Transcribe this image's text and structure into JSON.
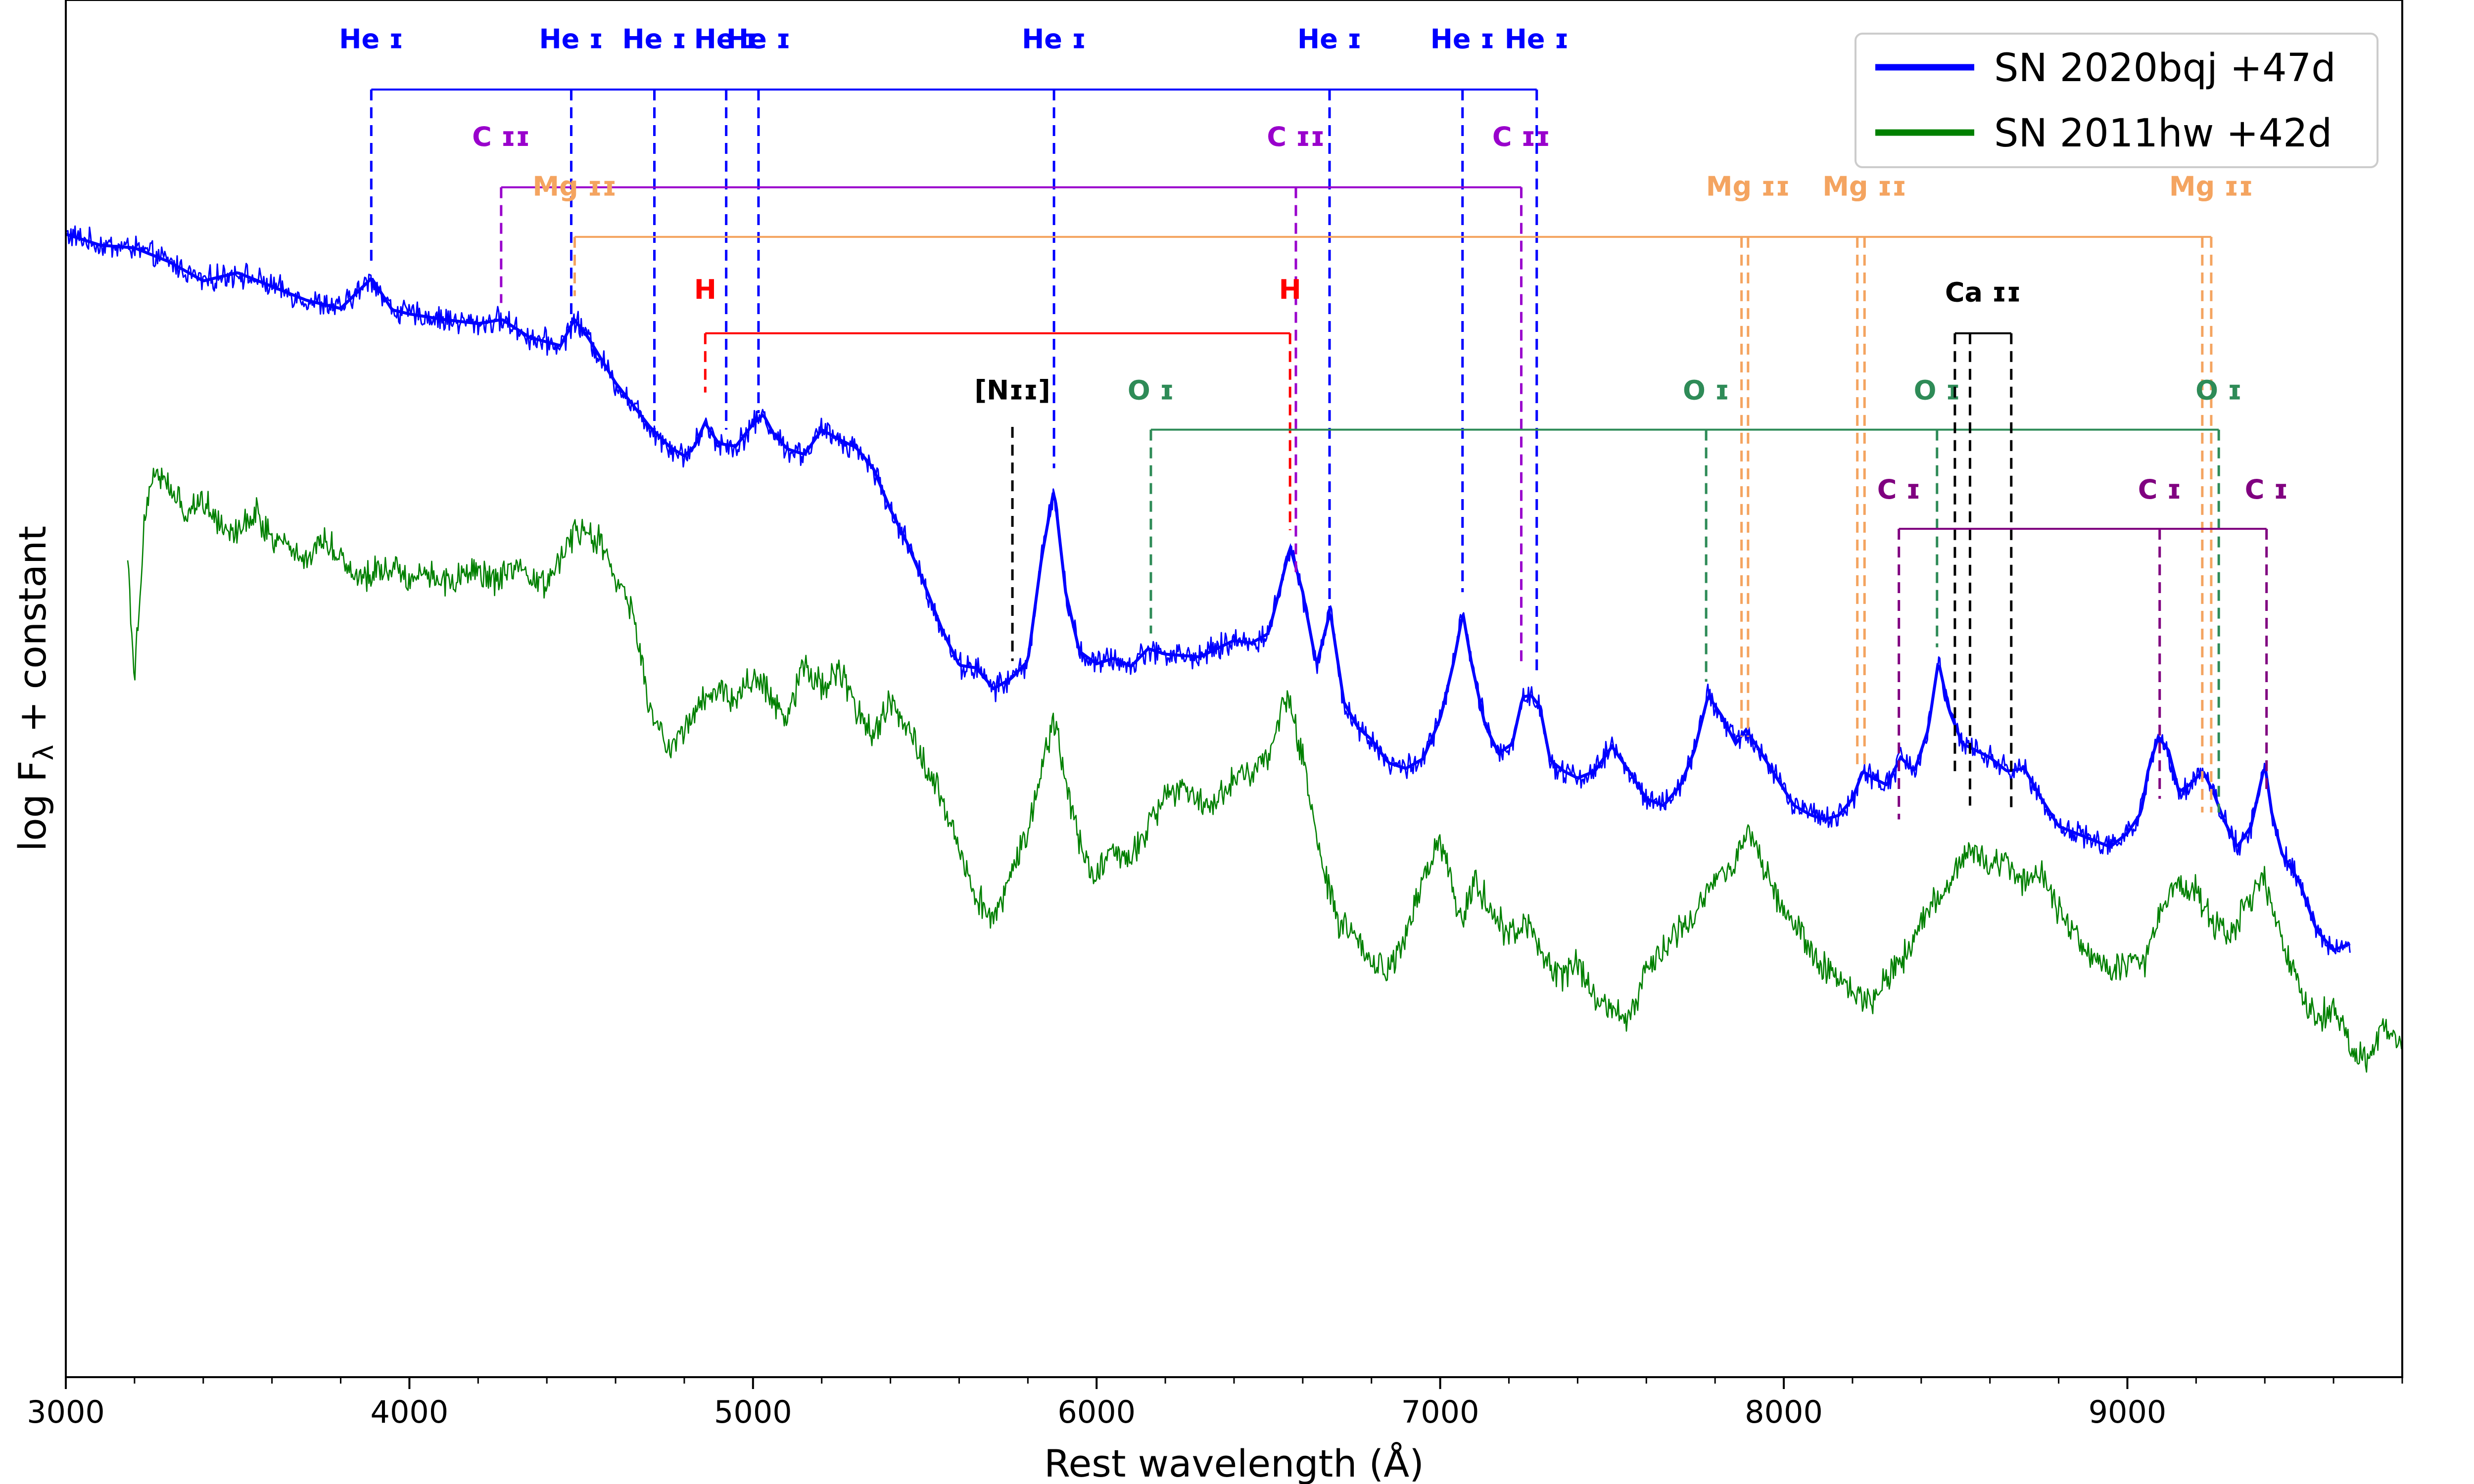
{
  "chart_data": {
    "type": "line",
    "xlabel": "Rest wavelength (Å)",
    "ylabel": "log F",
    "ylabel_sub": "λ",
    "ylabel_suffix": " + constant",
    "xlim": [
      3000,
      9800
    ],
    "ylim": [
      0,
      100
    ],
    "xticks": [
      3000,
      4000,
      5000,
      6000,
      7000,
      8000,
      9000
    ],
    "minor_step": 200,
    "grid": false,
    "legend_position": "top-right",
    "series": [
      {
        "name": "SN 2020bqj +47d",
        "color": "#0000ff",
        "noise": 0.9,
        "x": [
          3000,
          3100,
          3200,
          3300,
          3400,
          3500,
          3600,
          3700,
          3800,
          3890,
          3950,
          4000,
          4100,
          4200,
          4270,
          4350,
          4440,
          4480,
          4520,
          4600,
          4700,
          4760,
          4800,
          4830,
          4860,
          4900,
          4950,
          5000,
          5030,
          5060,
          5100,
          5150,
          5200,
          5250,
          5300,
          5350,
          5400,
          5450,
          5500,
          5550,
          5600,
          5650,
          5700,
          5750,
          5800,
          5840,
          5876,
          5910,
          5950,
          6000,
          6050,
          6100,
          6150,
          6200,
          6300,
          6400,
          6450,
          6500,
          6530,
          6563,
          6600,
          6640,
          6680,
          6720,
          6760,
          6800,
          6850,
          6900,
          6950,
          7000,
          7040,
          7066,
          7090,
          7130,
          7170,
          7210,
          7240,
          7265,
          7290,
          7320,
          7360,
          7400,
          7450,
          7500,
          7550,
          7600,
          7650,
          7700,
          7740,
          7780,
          7820,
          7860,
          7890,
          7930,
          7980,
          8030,
          8080,
          8120,
          8160,
          8200,
          8230,
          8260,
          8300,
          8340,
          8380,
          8420,
          8450,
          8480,
          8520,
          8560,
          8600,
          8650,
          8700,
          8750,
          8800,
          8850,
          8900,
          8950,
          9000,
          9040,
          9060,
          9090,
          9120,
          9150,
          9180,
          9220,
          9250,
          9280,
          9320,
          9360,
          9400,
          9420,
          9450,
          9500,
          9550,
          9600,
          9650
        ],
        "y": [
          83.0,
          82.2,
          82.0,
          81.0,
          79.6,
          80.2,
          79.2,
          78.2,
          77.6,
          79.8,
          77.5,
          77.2,
          76.8,
          76.5,
          76.8,
          75.5,
          74.9,
          76.8,
          75.5,
          72.2,
          69.0,
          67.5,
          66.9,
          67.6,
          69.3,
          67.8,
          67.6,
          69.2,
          69.9,
          68.5,
          67.4,
          67.0,
          68.8,
          68.1,
          67.5,
          66.0,
          63.0,
          60.5,
          57.5,
          54.3,
          51.7,
          51.5,
          50.0,
          50.7,
          52.0,
          59.5,
          64.5,
          57.0,
          52.7,
          51.8,
          52.2,
          51.6,
          52.9,
          52.5,
          52.3,
          53.5,
          53.3,
          54.0,
          56.9,
          60.3,
          57.0,
          51.7,
          55.6,
          49.0,
          47.2,
          46.3,
          44.6,
          44.2,
          44.9,
          47.8,
          52.0,
          55.5,
          52.0,
          47.4,
          45.3,
          46.0,
          49.4,
          49.5,
          48.7,
          44.8,
          44.0,
          43.5,
          44.0,
          45.8,
          44.0,
          42.0,
          41.5,
          43.0,
          45.5,
          49.5,
          48.0,
          46.0,
          47.0,
          45.5,
          43.5,
          41.5,
          40.8,
          40.5,
          40.8,
          42.0,
          44.0,
          43.5,
          43.0,
          45.0,
          44.0,
          47.0,
          52.0,
          48.5,
          46.0,
          45.5,
          45.0,
          44.0,
          44.2,
          42.0,
          40.0,
          39.5,
          39.0,
          38.5,
          39.5,
          41.0,
          44.0,
          46.5,
          45.5,
          42.5,
          43.0,
          44.0,
          42.5,
          40.5,
          38.5,
          40.0,
          44.5,
          41.0,
          38.0,
          36.0,
          32.5,
          31.0,
          31.5
        ]
      },
      {
        "name": "SN 2011hw +42d",
        "color": "#008000",
        "noise": 1.1,
        "x": [
          3180,
          3200,
          3230,
          3260,
          3300,
          3350,
          3400,
          3450,
          3500,
          3550,
          3600,
          3650,
          3700,
          3750,
          3800,
          3850,
          3900,
          3950,
          4000,
          4050,
          4100,
          4150,
          4200,
          4250,
          4300,
          4350,
          4400,
          4450,
          4500,
          4550,
          4600,
          4650,
          4700,
          4750,
          4800,
          4850,
          4900,
          4950,
          5000,
          5050,
          5100,
          5150,
          5200,
          5250,
          5300,
          5350,
          5400,
          5450,
          5500,
          5550,
          5600,
          5650,
          5700,
          5750,
          5800,
          5840,
          5876,
          5920,
          5960,
          6000,
          6050,
          6100,
          6150,
          6200,
          6250,
          6300,
          6350,
          6400,
          6450,
          6500,
          6530,
          6563,
          6600,
          6650,
          6700,
          6750,
          6800,
          6850,
          6900,
          6950,
          7000,
          7050,
          7066,
          7100,
          7150,
          7200,
          7250,
          7300,
          7350,
          7400,
          7450,
          7500,
          7550,
          7600,
          7650,
          7700,
          7750,
          7800,
          7850,
          7890,
          7930,
          7980,
          8050,
          8100,
          8150,
          8200,
          8250,
          8300,
          8350,
          8400,
          8450,
          8500,
          8550,
          8600,
          8650,
          8700,
          8750,
          8800,
          8850,
          8900,
          8950,
          9000,
          9050,
          9100,
          9150,
          9200,
          9250,
          9300,
          9350,
          9400,
          9450,
          9500,
          9550,
          9600,
          9650,
          9700,
          9750,
          9800
        ],
        "y": [
          60.0,
          50.5,
          63.0,
          66.0,
          64.5,
          62.8,
          63.8,
          62.0,
          61.5,
          62.8,
          61.0,
          60.5,
          59.2,
          61.0,
          59.6,
          58.0,
          58.5,
          59.0,
          58.0,
          58.5,
          57.8,
          58.0,
          58.5,
          57.8,
          58.5,
          58.0,
          57.5,
          60.2,
          61.5,
          60.8,
          58.0,
          55.5,
          48.5,
          45.5,
          47.0,
          49.2,
          50.0,
          49.0,
          51.0,
          49.5,
          48.0,
          52.0,
          50.0,
          51.5,
          48.5,
          46.5,
          49.0,
          47.5,
          44.5,
          42.0,
          38.5,
          35.0,
          33.0,
          36.5,
          40.0,
          44.0,
          47.8,
          42.0,
          38.0,
          36.5,
          37.8,
          38.0,
          40.0,
          42.0,
          43.0,
          42.0,
          41.8,
          43.5,
          44.0,
          45.0,
          48.0,
          49.3,
          45.0,
          38.0,
          33.0,
          32.0,
          30.0,
          29.5,
          32.0,
          36.0,
          39.0,
          34.0,
          33.0,
          36.0,
          34.0,
          32.0,
          33.0,
          30.5,
          29.0,
          30.0,
          27.5,
          27.0,
          26.0,
          29.5,
          31.5,
          32.5,
          34.0,
          36.0,
          37.0,
          40.0,
          38.0,
          34.5,
          32.5,
          30.0,
          29.0,
          28.0,
          27.0,
          29.0,
          30.5,
          33.0,
          35.0,
          36.5,
          38.5,
          37.0,
          37.5,
          36.0,
          36.5,
          34.0,
          32.0,
          30.5,
          29.5,
          30.0,
          30.0,
          34.0,
          36.0,
          35.5,
          33.0,
          32.0,
          34.5,
          36.0,
          31.5,
          28.0,
          26.0,
          27.0,
          24.0,
          23.0,
          25.5,
          24.0
        ]
      }
    ],
    "line_groups": [
      {
        "name": "He I",
        "label": "He ɪ",
        "color": "#0000ff",
        "bar_level": 93.5,
        "label_level": 96.5,
        "lines": [
          {
            "x": 3889,
            "line_top": 93.5,
            "line_bottom": 81.0,
            "label": "He ɪ",
            "label_x": 3889
          },
          {
            "x": 4471,
            "line_top": 93.5,
            "line_bottom": 76.5,
            "label": "He ɪ",
            "label_x": 4471
          },
          {
            "x": 4713,
            "line_top": 93.5,
            "line_bottom": 68.5,
            "label": "He ɪ",
            "label_x": 4713
          },
          {
            "x": 4922,
            "line_top": 93.5,
            "line_bottom": 68.8,
            "label": "He ɪ",
            "label_x": 4922
          },
          {
            "x": 5016,
            "line_top": 93.5,
            "line_bottom": 70.0,
            "label": "He ɪ",
            "label_x": 5016
          },
          {
            "x": 5876,
            "line_top": 93.5,
            "line_bottom": 66.0,
            "label": "He ɪ",
            "label_x": 5876
          },
          {
            "x": 6678,
            "line_top": 93.5,
            "line_bottom": 55.5,
            "label": "He ɪ",
            "label_x": 6678
          },
          {
            "x": 7065,
            "line_top": 93.5,
            "line_bottom": 57.0,
            "label": "He ɪ",
            "label_x": 7065
          },
          {
            "x": 7281,
            "line_top": 93.5,
            "line_bottom": 51.0,
            "label": "He ɪ",
            "label_x": 7281
          }
        ]
      },
      {
        "name": "C II",
        "label": "C ɪɪ",
        "color": "#9900cc",
        "bar_level": 86.4,
        "label_level": 89.4,
        "lines": [
          {
            "x": 4267,
            "line_top": 86.4,
            "line_bottom": 78.0,
            "label": "C ɪɪ",
            "label_x": 4267
          },
          {
            "x": 6580,
            "line_top": 86.4,
            "line_bottom": 58.0,
            "label": "C ɪɪ",
            "label_x": 6580
          },
          {
            "x": 7236,
            "line_top": 86.4,
            "line_bottom": 51.5,
            "label": "C ɪɪ",
            "label_x": 7236
          }
        ]
      },
      {
        "name": "Mg II",
        "label": "Mg ɪɪ",
        "color": "#f4a460",
        "bar_level": 82.8,
        "label_level": 85.8,
        "lines": [
          {
            "x": 4481,
            "line_top": 82.8,
            "line_bottom": 78.5,
            "label": "Mg ɪɪ",
            "label_x": 4481
          },
          {
            "x": 7877,
            "line_top": 82.8,
            "line_bottom": 46.5,
            "label": "",
            "label_x": 7877
          },
          {
            "x": 7896,
            "line_top": 82.8,
            "line_bottom": 46.5,
            "label": "Mg ɪɪ",
            "label_x": 7896
          },
          {
            "x": 8214,
            "line_top": 82.8,
            "line_bottom": 44.5,
            "label": "",
            "label_x": 8214
          },
          {
            "x": 8235,
            "line_top": 82.8,
            "line_bottom": 44.5,
            "label": "Mg ɪɪ",
            "label_x": 8235
          },
          {
            "x": 9218,
            "line_top": 82.8,
            "line_bottom": 41.0,
            "label": "",
            "label_x": 9218
          },
          {
            "x": 9244,
            "line_top": 82.8,
            "line_bottom": 41.0,
            "label": "Mg ɪɪ",
            "label_x": 9244
          }
        ]
      },
      {
        "name": "H",
        "label": "H",
        "color": "#ff0000",
        "bar_level": 75.8,
        "label_level": 78.3,
        "lines": [
          {
            "x": 4861,
            "line_top": 75.8,
            "line_bottom": 71.5,
            "label": "H",
            "label_x": 4861
          },
          {
            "x": 6563,
            "line_top": 75.8,
            "line_bottom": 61.5,
            "label": "H",
            "label_x": 6563
          }
        ]
      },
      {
        "name": "[N II]",
        "label": "[Nɪɪ]",
        "color": "#000000",
        "bar_level": null,
        "label_level": 71.0,
        "lines": [
          {
            "x": 5755,
            "line_top": 69.0,
            "line_bottom": 52.0,
            "label": "[Nɪɪ]",
            "label_x": 5755
          }
        ]
      },
      {
        "name": "O I",
        "label": "O ɪ",
        "color": "#2e8b57",
        "bar_level": 68.8,
        "label_level": 71.0,
        "lines": [
          {
            "x": 6158,
            "line_top": 68.8,
            "line_bottom": 54.0,
            "label": "O ɪ",
            "label_x": 6158
          },
          {
            "x": 7774,
            "line_top": 68.8,
            "line_bottom": 50.5,
            "label": "O ɪ",
            "label_x": 7774
          },
          {
            "x": 8446,
            "line_top": 68.8,
            "line_bottom": 53.0,
            "label": "O ɪ",
            "label_x": 8446
          },
          {
            "x": 9266,
            "line_top": 68.8,
            "line_bottom": 41.0,
            "label": "O ɪ",
            "label_x": 9266
          }
        ]
      },
      {
        "name": "Ca II",
        "label": "Ca ɪɪ",
        "color": "#000000",
        "bar_level": 75.8,
        "label_level": 78.1,
        "lines": [
          {
            "x": 8498,
            "line_top": 75.8,
            "line_bottom": 44.0,
            "label": "",
            "label_x": 8498
          },
          {
            "x": 8542,
            "line_top": 75.8,
            "line_bottom": 41.5,
            "label": "Ca ɪɪ",
            "label_x": 8580
          },
          {
            "x": 8662,
            "line_top": 75.8,
            "line_bottom": 41.0,
            "label": "",
            "label_x": 8662
          }
        ]
      },
      {
        "name": "C I",
        "label": "C ɪ",
        "color": "#800080",
        "bar_level": 61.6,
        "label_level": 63.8,
        "lines": [
          {
            "x": 8335,
            "line_top": 61.6,
            "line_bottom": 40.5,
            "label": "C ɪ",
            "label_x": 8335
          },
          {
            "x": 9094,
            "line_top": 61.6,
            "line_bottom": 42.0,
            "label": "C ɪ",
            "label_x": 9094
          },
          {
            "x": 9405,
            "line_top": 61.6,
            "line_bottom": 42.5,
            "label": "C ɪ",
            "label_x": 9405
          }
        ]
      }
    ]
  }
}
